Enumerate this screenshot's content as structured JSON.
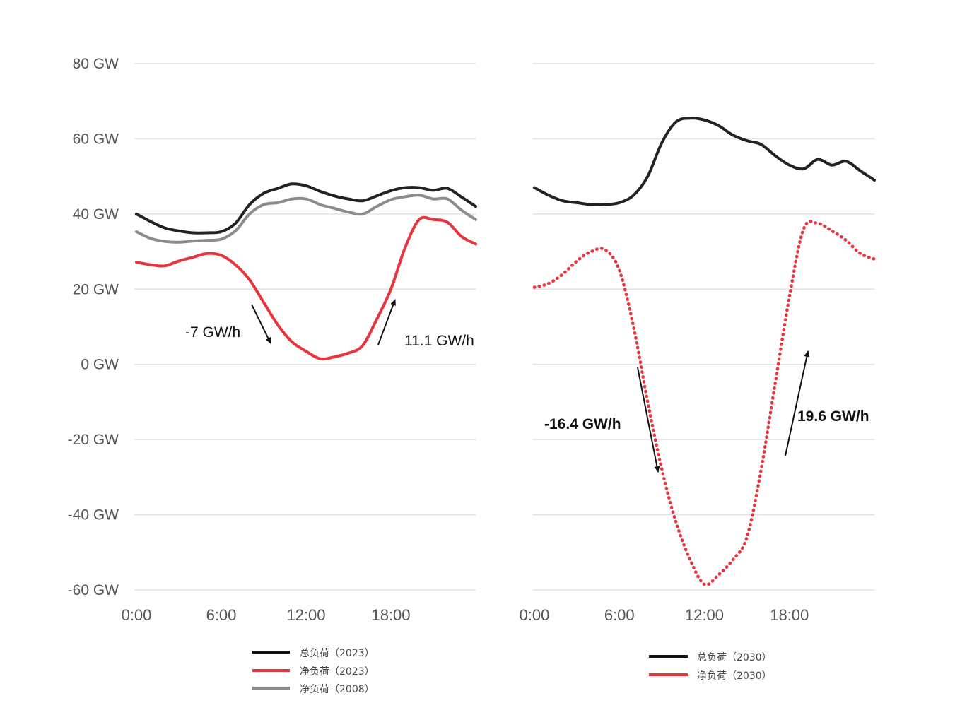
{
  "chart_data": [
    {
      "type": "line",
      "x_ticks": [
        "0:00",
        "6:00",
        "12:00",
        "18:00"
      ],
      "y_ticks": [
        "80 GW",
        "60 GW",
        "40 GW",
        "20 GW",
        "0 GW",
        "-20 GW",
        "-40 GW",
        "-60 GW"
      ],
      "ylim": [
        -60,
        80
      ],
      "xlim": [
        0,
        24
      ],
      "grid": true,
      "legend_position": "bottom",
      "series": [
        {
          "name": "总负荷（2023）",
          "color": "#222222",
          "style": "solid",
          "x": [
            0,
            1,
            2,
            3,
            4,
            5,
            6,
            7,
            8,
            9,
            10,
            11,
            12,
            13,
            14,
            15,
            16,
            17,
            18,
            19,
            20,
            21,
            22,
            23,
            24
          ],
          "values": [
            40,
            38,
            36.3,
            35.5,
            35,
            35,
            35.3,
            37.5,
            42.5,
            45.5,
            46.8,
            48,
            47.5,
            46,
            44.8,
            44,
            43.5,
            44.8,
            46.2,
            47,
            47,
            46.3,
            46.8,
            44.5,
            42
          ]
        },
        {
          "name": "净负荷（2023）",
          "color": "#e8343c",
          "style": "solid",
          "x": [
            0,
            1,
            2,
            3,
            4,
            5,
            6,
            7,
            8,
            9,
            10,
            11,
            12,
            13,
            14,
            15,
            16,
            17,
            18,
            19,
            20,
            21,
            22,
            23,
            24
          ],
          "values": [
            27.2,
            26.5,
            26.2,
            27.5,
            28.5,
            29.5,
            29,
            26.5,
            22.5,
            16.5,
            10.5,
            6,
            3.5,
            1.5,
            2,
            3,
            5,
            12,
            20,
            31,
            38.5,
            38.5,
            37.8,
            34,
            32
          ]
        },
        {
          "name": "净负荷（2008）",
          "color": "#8c8c8c",
          "style": "solid",
          "x": [
            0,
            1,
            2,
            3,
            4,
            5,
            6,
            7,
            8,
            9,
            10,
            11,
            12,
            13,
            14,
            15,
            16,
            17,
            18,
            19,
            20,
            21,
            22,
            23,
            24
          ],
          "values": [
            35.3,
            33.5,
            32.7,
            32.5,
            32.8,
            33,
            33.3,
            35.5,
            40,
            42.5,
            43,
            44,
            44,
            42.5,
            41.5,
            40.5,
            40,
            42,
            43.8,
            44.6,
            45,
            44,
            44,
            41,
            38.5
          ]
        }
      ],
      "annotations": [
        {
          "text": "-7 GW/h",
          "bold": false
        },
        {
          "text": "11.1 GW/h",
          "bold": false
        }
      ]
    },
    {
      "type": "line",
      "x_ticks": [
        "0:00",
        "6:00",
        "12:00",
        "18:00"
      ],
      "ylim": [
        -60,
        80
      ],
      "xlim": [
        0,
        24
      ],
      "grid": true,
      "legend_position": "bottom",
      "series": [
        {
          "name": "总负荷（2030）",
          "color": "#222222",
          "style": "solid",
          "x": [
            0,
            1,
            2,
            3,
            4,
            5,
            6,
            7,
            8,
            9,
            10,
            11,
            12,
            13,
            14,
            15,
            16,
            17,
            18,
            19,
            20,
            21,
            22,
            23,
            24
          ],
          "values": [
            47,
            45,
            43.5,
            43,
            42.5,
            42.5,
            43,
            45,
            50,
            59,
            64.5,
            65.5,
            65,
            63.5,
            61,
            59.5,
            58.5,
            55.5,
            53,
            52,
            54.5,
            53,
            54,
            51.5,
            49
          ]
        },
        {
          "name": "净负荷（2030）",
          "color": "#e8343c",
          "style": "dotted",
          "x": [
            0,
            1,
            2,
            3,
            4,
            5,
            6,
            7,
            8,
            9,
            10,
            11,
            12,
            13,
            14,
            15,
            16,
            17,
            18,
            19,
            20,
            21,
            22,
            23,
            24
          ],
          "values": [
            20.5,
            21.5,
            24,
            27.5,
            30,
            30.5,
            25,
            10,
            -10,
            -28,
            -42,
            -52,
            -58.5,
            -56,
            -52,
            -46,
            -28,
            -5,
            18,
            36,
            37.5,
            35.5,
            33,
            29.5,
            28
          ]
        }
      ],
      "annotations": [
        {
          "text": "-16.4 GW/h",
          "bold": true
        },
        {
          "text": "19.6 GW/h",
          "bold": true
        }
      ]
    }
  ]
}
